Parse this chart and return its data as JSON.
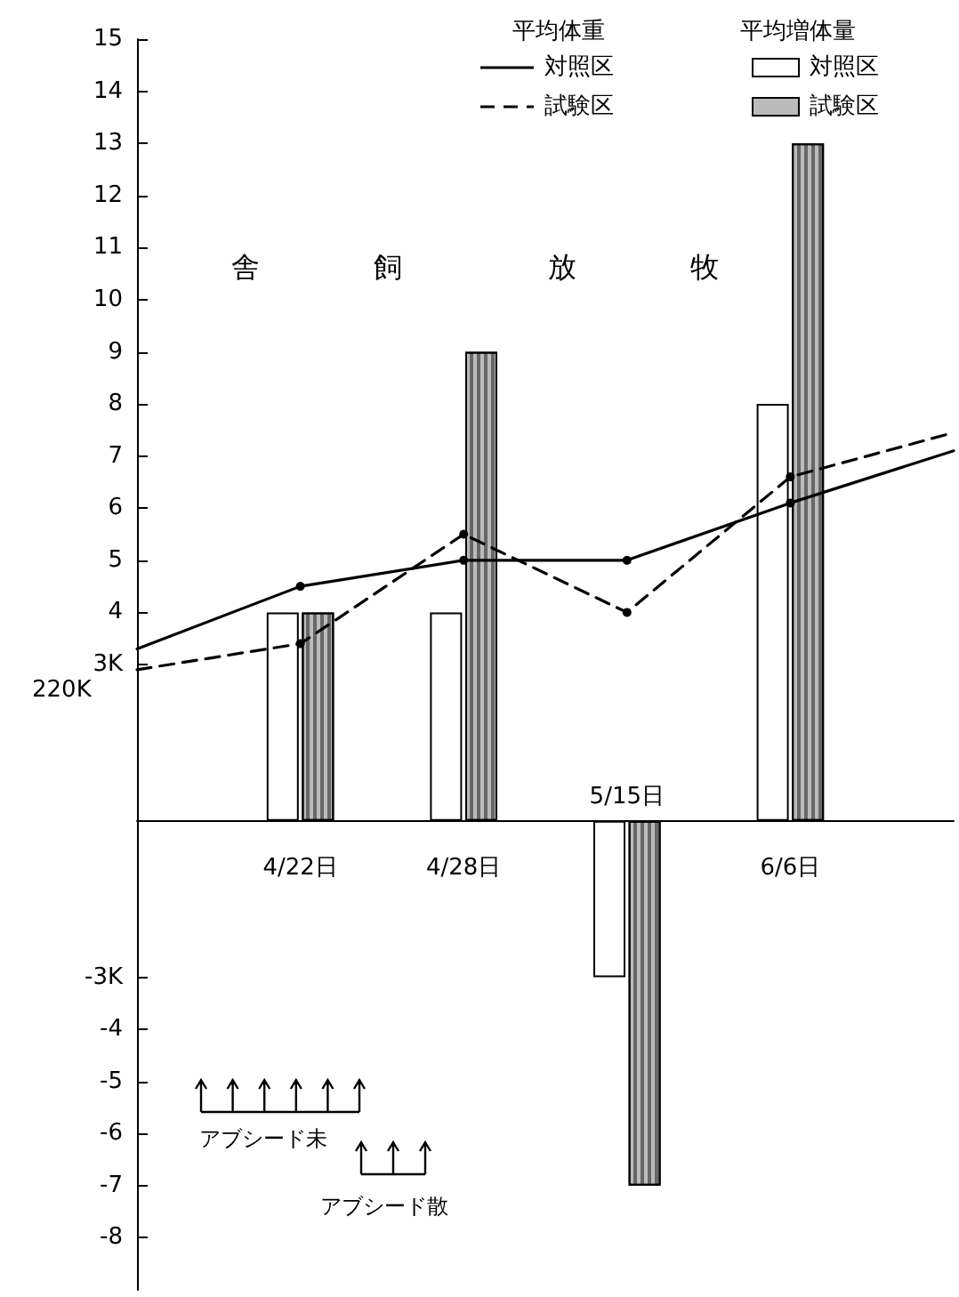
{
  "chart_data": {
    "type": "bar",
    "categories": [
      null,
      "4/22日",
      "4/28日",
      "5/15日",
      "6/6日",
      null
    ],
    "series": [
      {
        "name": "対照区",
        "type": "line",
        "color": "#000000",
        "line_style": "solid",
        "values": [
          3.3,
          4.5,
          5,
          5,
          6.1,
          7.1
        ]
      },
      {
        "name": "試験区",
        "type": "line",
        "color": "#000000",
        "line_style": "dashed",
        "values": [
          2.9,
          3.4,
          5.5,
          4,
          6.6,
          7.45
        ]
      },
      {
        "name": "対照区",
        "color": "#ffffff",
        "values": [
          null,
          4,
          4,
          -3,
          8,
          null
        ]
      },
      {
        "name": "試験区",
        "color": "#bbbbbb",
        "values": [
          null,
          4,
          9,
          -7,
          13,
          null
        ]
      }
    ],
    "ylim": [
      -9,
      15
    ],
    "yticks": [
      -8,
      -7,
      -6,
      -5,
      -4,
      {
        "value": -3,
        "label": "-3K"
      },
      {
        "value": 3,
        "label": "3K"
      },
      4,
      5,
      6,
      7,
      8,
      9,
      10,
      11,
      12,
      13,
      14,
      15
    ],
    "annotations": [
      "220K",
      "平均体重",
      "平均増体量",
      "舎　　　　飼",
      "放　　　　牧",
      "アブシード未",
      "アブシード散"
    ],
    "marker": "circle",
    "grid": false,
    "legend": "top right"
  }
}
